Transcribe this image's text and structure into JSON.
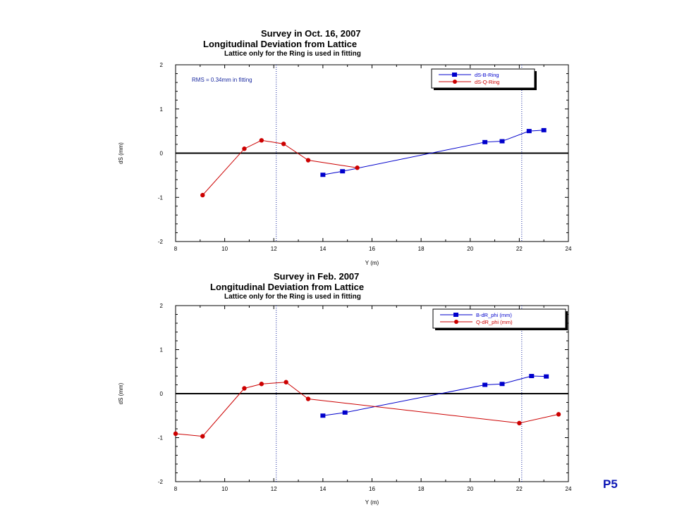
{
  "page_label": "P5",
  "chart_data": [
    {
      "type": "line",
      "title": "Survey in Oct. 16, 2007",
      "subtitle": "Longitudinal Deviation from Lattice",
      "note": "Lattice only for the Ring is used in fitting",
      "xlabel": "Y (m)",
      "ylabel": "dS (mm)",
      "xlim": [
        8,
        24
      ],
      "ylim": [
        -2,
        2
      ],
      "xticks": [
        "8",
        "10",
        "12",
        "14",
        "16",
        "18",
        "20",
        "22",
        "24"
      ],
      "yticks": [
        "-2",
        "-1",
        "0",
        "1",
        "2"
      ],
      "grid": false,
      "legend_position": "top-right",
      "annotation": "RMS = 0.34mm in fitting",
      "vlines": [
        12.1,
        22.1
      ],
      "series": [
        {
          "name": "dS-B-Ring",
          "color": "#0000cc",
          "marker": "square",
          "x": [
            14.0,
            14.8,
            20.6,
            21.3,
            22.4,
            23.0
          ],
          "y": [
            -0.49,
            -0.41,
            0.25,
            0.27,
            0.5,
            0.52
          ]
        },
        {
          "name": "dS-Q-Ring",
          "color": "#cc0000",
          "marker": "circle",
          "x": [
            9.1,
            10.8,
            11.5,
            12.4,
            13.4,
            15.4
          ],
          "y": [
            -0.95,
            0.1,
            0.29,
            0.21,
            -0.16,
            -0.33
          ]
        }
      ]
    },
    {
      "type": "line",
      "title": "Survey in Feb. 2007",
      "subtitle": "Longitudinal Deviation from Lattice",
      "note": "Lattice only for the Ring is used in fitting",
      "xlabel": "Y (m)",
      "ylabel": "dS (mm)",
      "xlim": [
        8,
        24
      ],
      "ylim": [
        -2,
        2
      ],
      "xticks": [
        "8",
        "10",
        "12",
        "14",
        "16",
        "18",
        "20",
        "22",
        "24"
      ],
      "yticks": [
        "-2",
        "-1",
        "0",
        "1",
        "2"
      ],
      "grid": false,
      "legend_position": "top-right",
      "vlines": [
        12.1,
        22.1
      ],
      "series": [
        {
          "name": "B-dR_phi (mm)",
          "color": "#0000cc",
          "marker": "square",
          "x": [
            14.0,
            14.9,
            20.6,
            21.3,
            22.5,
            23.1
          ],
          "y": [
            -0.5,
            -0.43,
            0.2,
            0.22,
            0.4,
            0.39
          ]
        },
        {
          "name": "Q-dR_phi (mm)",
          "color": "#cc0000",
          "marker": "circle",
          "x": [
            8.0,
            9.1,
            10.8,
            11.5,
            12.5,
            13.4,
            22.0,
            23.6
          ],
          "y": [
            -0.91,
            -0.97,
            0.12,
            0.22,
            0.26,
            -0.12,
            -0.67,
            -0.47
          ]
        }
      ]
    }
  ]
}
